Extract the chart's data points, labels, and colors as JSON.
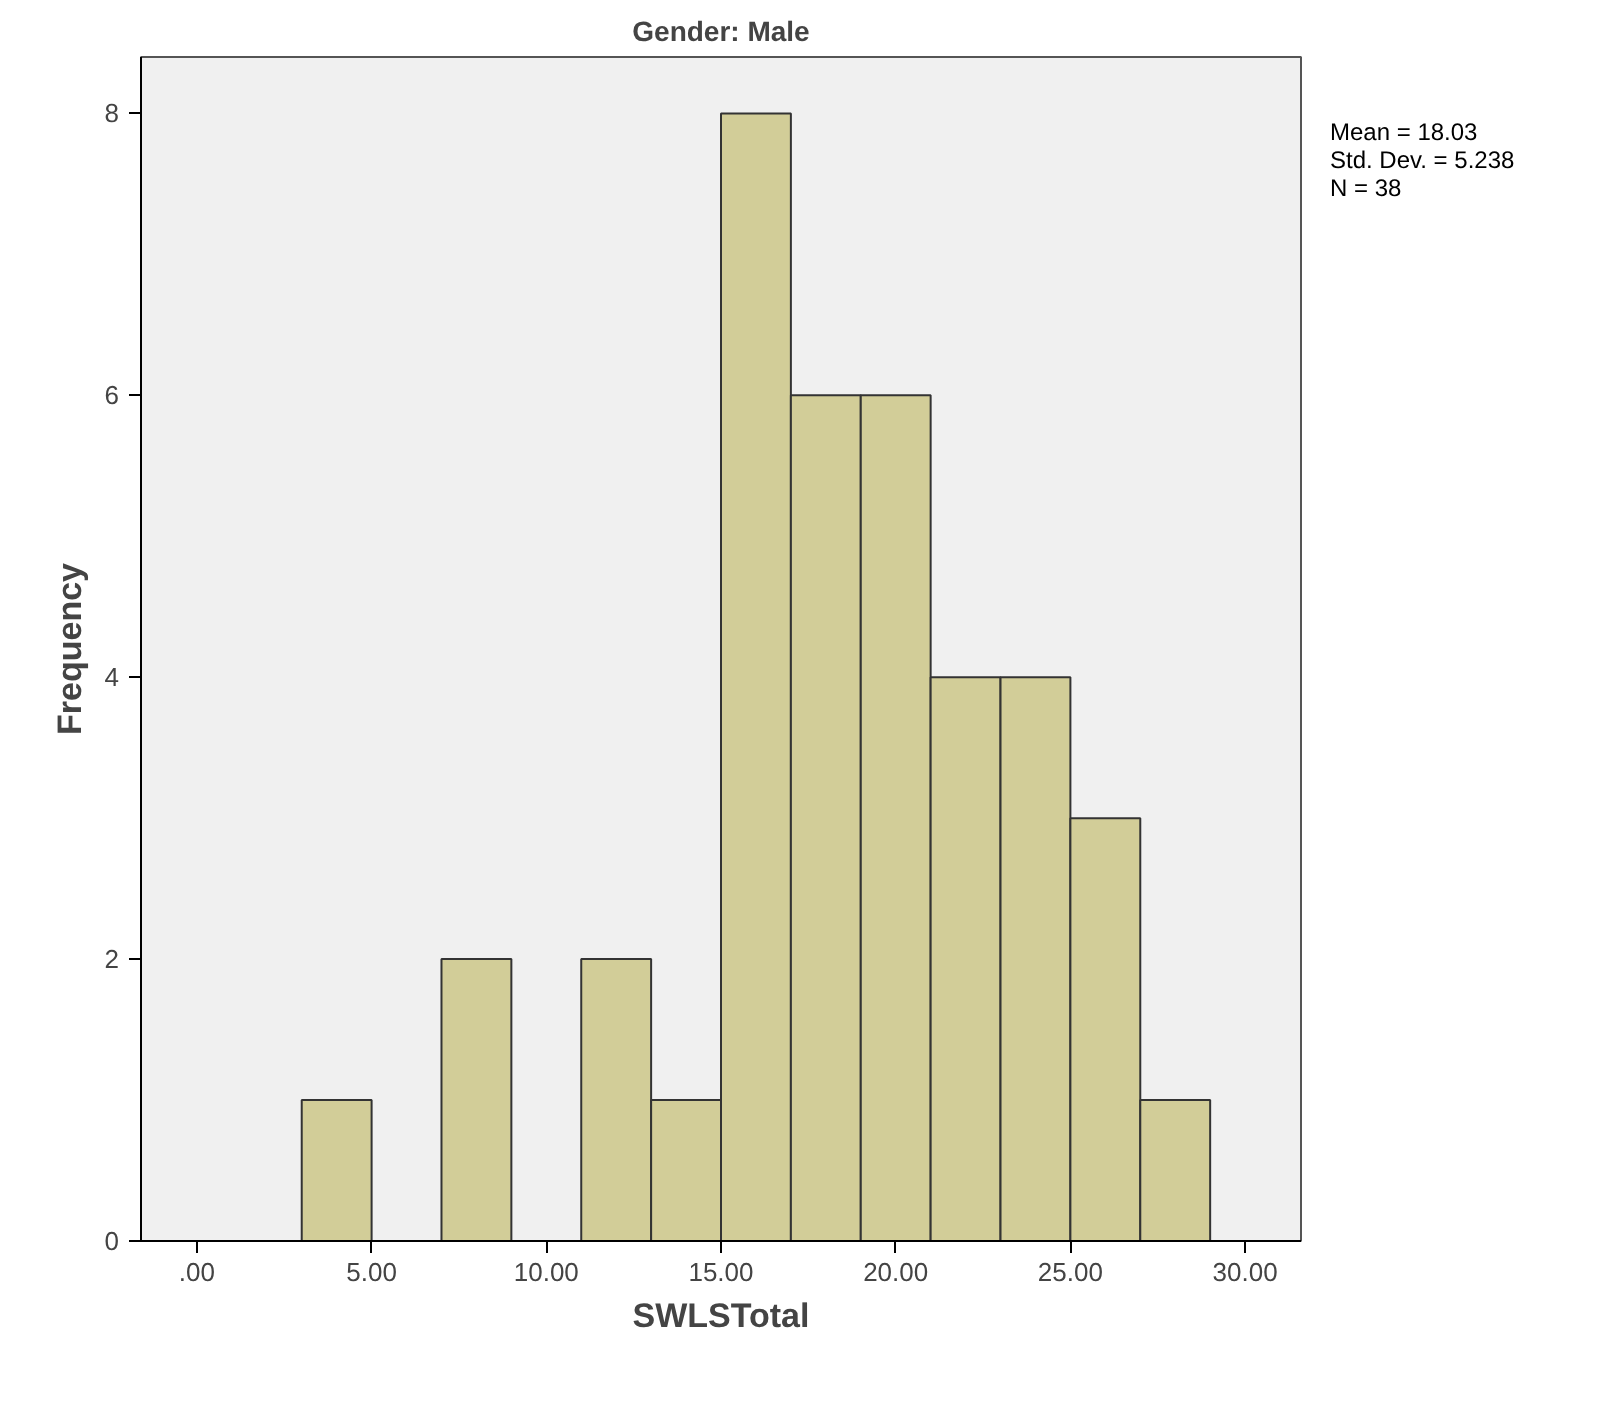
{
  "chart_data": {
    "type": "histogram",
    "title": "Gender: Male",
    "xlabel": "SWLSTotal",
    "ylabel": "Frequency",
    "bins": [
      3,
      5,
      7,
      9,
      11,
      13,
      15,
      17,
      19,
      21,
      23,
      25,
      27,
      29
    ],
    "values": [
      1,
      0,
      2,
      0,
      2,
      1,
      8,
      6,
      6,
      4,
      4,
      3,
      1
    ],
    "color": "#d2cd98",
    "xlim": [
      -1.6,
      31.6
    ],
    "ylim": [
      0,
      8.4
    ],
    "xticks": [
      {
        "value": 0,
        "label": ".00"
      },
      {
        "value": 5,
        "label": "5.00"
      },
      {
        "value": 10,
        "label": "10.00"
      },
      {
        "value": 15,
        "label": "15.00"
      },
      {
        "value": 20,
        "label": "20.00"
      },
      {
        "value": 25,
        "label": "25.00"
      },
      {
        "value": 30,
        "label": "30.00"
      }
    ],
    "yticks": [
      0,
      2,
      4,
      6,
      8
    ],
    "grid": false,
    "annotations": [
      "Mean = 18.03",
      "Std. Dev. = 5.238",
      "N = 38"
    ]
  }
}
